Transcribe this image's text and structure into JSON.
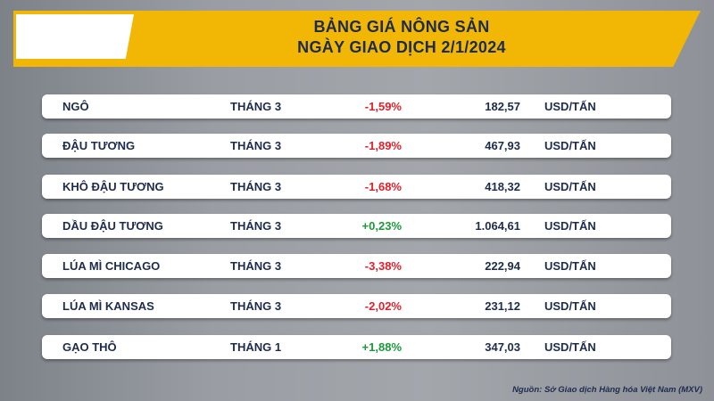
{
  "header": {
    "title_line1": "BẢNG GIÁ NÔNG SẢN",
    "title_line2": "NGÀY GIAO DỊCH 2/1/2024"
  },
  "table": {
    "rows": [
      [
        "NGÔ",
        "THÁNG 3",
        "-1,59%",
        "182,57",
        "USD/TẤN"
      ],
      [
        "ĐẬU TƯƠNG",
        "THÁNG 3",
        "-1,89%",
        "467,93",
        "USD/TẤN"
      ],
      [
        "KHÔ ĐẬU TƯƠNG",
        "THÁNG 3",
        "-1,68%",
        "418,32",
        "USD/TẤN"
      ],
      [
        "DẦU ĐẬU TƯƠNG",
        "THÁNG 3",
        "+0,23%",
        "1.064,61",
        "USD/TẤN"
      ],
      [
        "LÚA MÌ CHICAGO",
        "THÁNG 3",
        "-3,38%",
        "222,94",
        "USD/TẤN"
      ],
      [
        "LÚA MÌ KANSAS",
        "THÁNG 3",
        "-2,02%",
        "231,12",
        "USD/TẤN"
      ],
      [
        "GẠO THÔ",
        "THÁNG 1",
        "+1,88%",
        "347,03",
        "USD/TẤN"
      ]
    ]
  },
  "source": "Nguồn: Sở Giao dịch Hàng hóa Việt Nam (MXV)"
}
